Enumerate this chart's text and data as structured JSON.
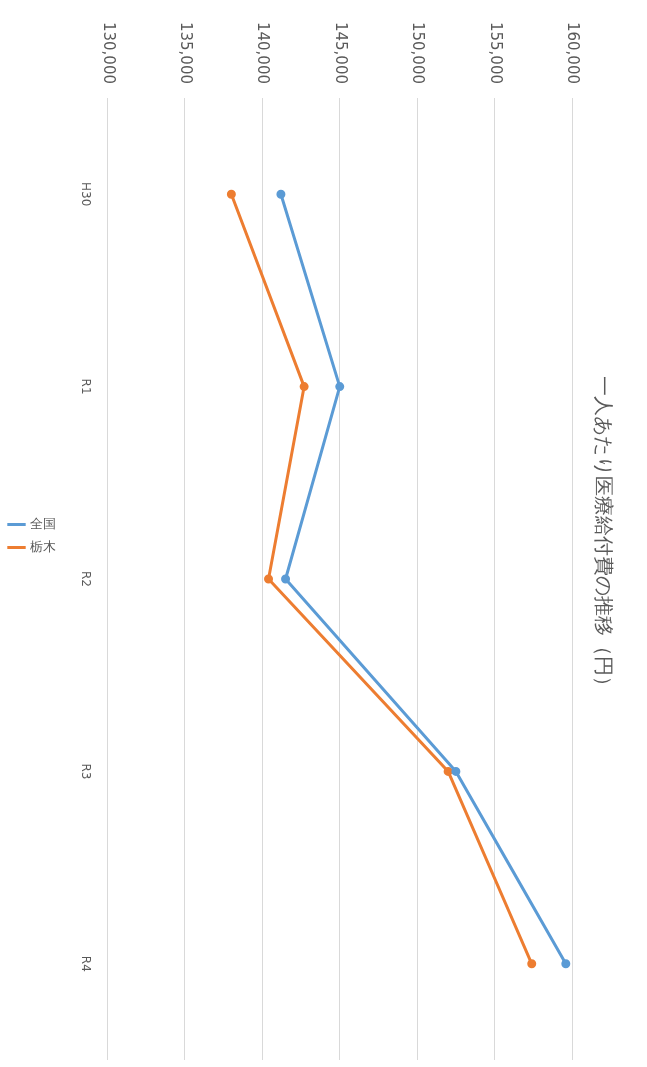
{
  "chart_data": {
    "type": "line",
    "title": "一人あたり医療給付費の推移（円）",
    "categories": [
      "H30",
      "R1",
      "R2",
      "R3",
      "R4"
    ],
    "series": [
      {
        "name": "全国",
        "color": "#5b9bd5",
        "values": [
          141200,
          145000,
          141500,
          152500,
          159600
        ]
      },
      {
        "name": "栃木",
        "color": "#ed7d31",
        "values": [
          138000,
          142700,
          140400,
          152000,
          157400
        ]
      }
    ],
    "orientation": "horizontal",
    "xlim": [
      130000,
      160000
    ],
    "xticks": [
      {
        "value": 130000,
        "label": "130,000"
      },
      {
        "value": 135000,
        "label": "135,000"
      },
      {
        "value": 140000,
        "label": "140,000"
      },
      {
        "value": 145000,
        "label": "145,000"
      },
      {
        "value": 150000,
        "label": "150,000"
      },
      {
        "value": 155000,
        "label": "155,000"
      },
      {
        "value": 160000,
        "label": "160,000"
      }
    ],
    "grid": "x",
    "legend": "left",
    "marker": "circle",
    "line_style": "solid"
  }
}
